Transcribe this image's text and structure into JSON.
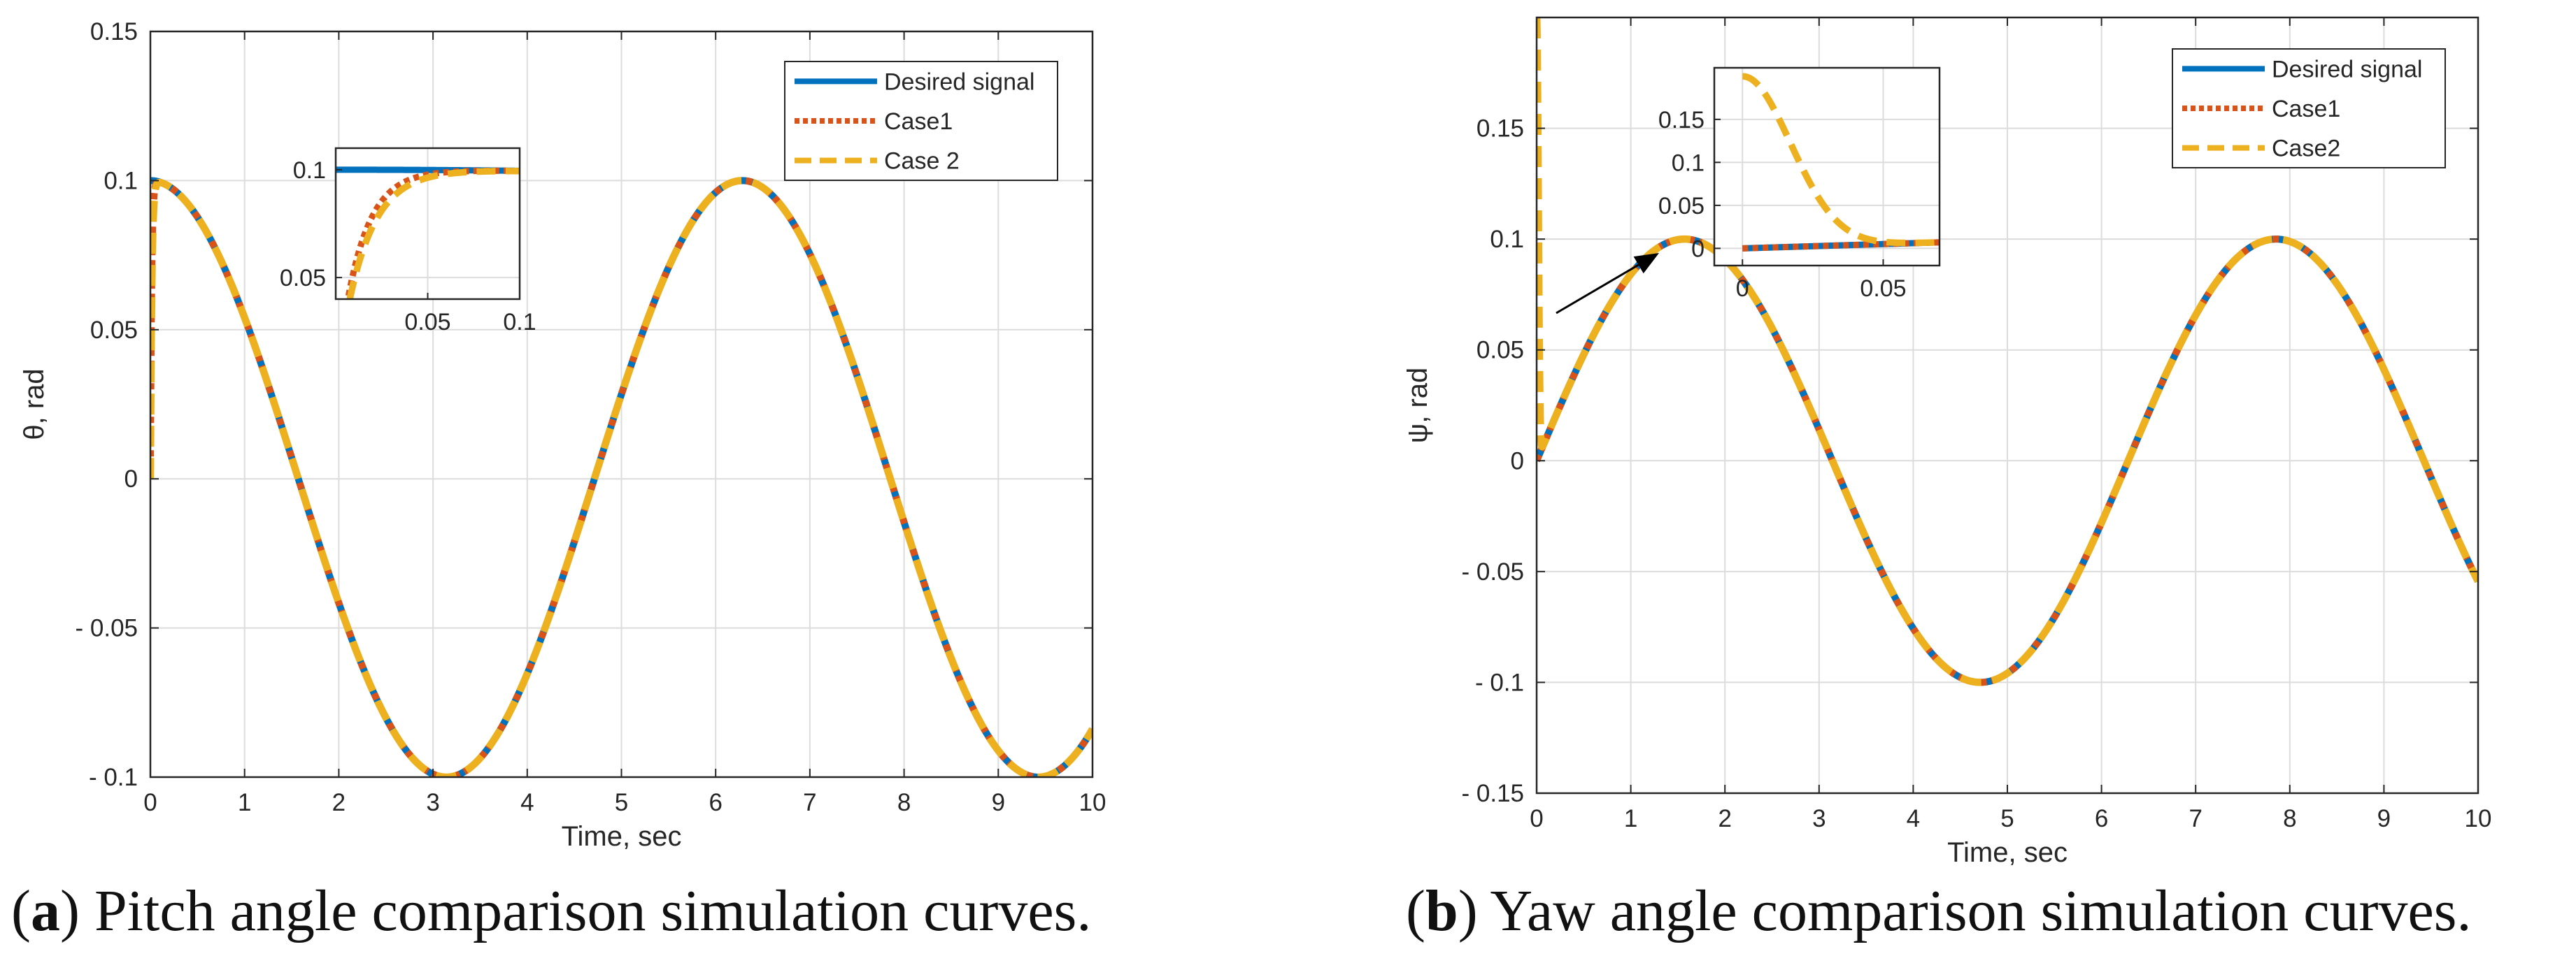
{
  "colors": {
    "desired": "#0072BD",
    "case1": "#D95319",
    "case2": "#EDB120"
  },
  "captions": {
    "a": {
      "open": "(",
      "letter": "a",
      "text": ") Pitch angle comparison simulation curves."
    },
    "b": {
      "open": "(",
      "letter": "b",
      "text": ") Yaw angle comparison simulation curves."
    }
  },
  "chart_data": [
    {
      "id": "pitch",
      "type": "line",
      "xlabel": "Time, sec",
      "ylabel": "θ, rad",
      "xlim": [
        0,
        10
      ],
      "ylim": [
        -0.1,
        0.15
      ],
      "xticks": [
        0,
        1,
        2,
        3,
        4,
        5,
        6,
        7,
        8,
        9,
        10
      ],
      "xtick_labels": [
        "0",
        "1",
        "2",
        "3",
        "4",
        "5",
        "6",
        "7",
        "8",
        "9",
        "10"
      ],
      "yticks": [
        -0.1,
        -0.05,
        0,
        0.05,
        0.1,
        0.15
      ],
      "ytick_labels": [
        "- 0.1",
        "- 0.05",
        "0",
        "0.05",
        "0.1",
        "0.15"
      ],
      "grid": true,
      "legend": {
        "position": "top-right",
        "entries": [
          "Desired signal",
          "Case1",
          "Case 2"
        ]
      },
      "series": [
        {
          "name": "Desired signal",
          "function": "0.1*cos(t)",
          "style": "solid"
        },
        {
          "name": "Case1",
          "function": "0.1*cos(t) with initial rise from 0 at t=0",
          "style": "dotted"
        },
        {
          "name": "Case 2",
          "function": "0.1*cos(t) with initial rise from 0 at t=0",
          "style": "dashed"
        }
      ],
      "inset": {
        "xlim": [
          0,
          0.1
        ],
        "ylim": [
          0.04,
          0.11
        ],
        "xticks": [
          0.05,
          0.1
        ],
        "xtick_labels": [
          "0.05",
          "0.1"
        ],
        "yticks": [
          0.05,
          0.1
        ],
        "ytick_labels": [
          "0.05",
          "0.1"
        ]
      }
    },
    {
      "id": "yaw",
      "type": "line",
      "xlabel": "Time, sec",
      "ylabel": "ψ, rad",
      "xlim": [
        0,
        10
      ],
      "ylim": [
        -0.15,
        0.2
      ],
      "xticks": [
        0,
        1,
        2,
        3,
        4,
        5,
        6,
        7,
        8,
        9,
        10
      ],
      "xtick_labels": [
        "0",
        "1",
        "2",
        "3",
        "4",
        "5",
        "6",
        "7",
        "8",
        "9",
        "10"
      ],
      "yticks": [
        -0.15,
        -0.1,
        -0.05,
        0,
        0.05,
        0.1,
        0.15
      ],
      "ytick_labels": [
        "- 0.15",
        "- 0.1",
        "- 0.05",
        "0",
        "0.05",
        "0.1",
        "0.15"
      ],
      "grid": true,
      "legend": {
        "position": "top-right",
        "entries": [
          "Desired signal",
          "Case1",
          "Case2"
        ]
      },
      "series": [
        {
          "name": "Desired signal",
          "function": "0.1*sin(t)",
          "style": "solid"
        },
        {
          "name": "Case1",
          "function": "0.1*sin(t)",
          "style": "dotted"
        },
        {
          "name": "Case2",
          "function": "0.1*sin(t) with initial spike to 0.2 at t=0",
          "style": "dashed"
        }
      ],
      "inset": {
        "xlim": [
          -0.01,
          0.07
        ],
        "ylim": [
          -0.02,
          0.21
        ],
        "xticks": [
          0,
          0.05
        ],
        "xtick_labels": [
          "0",
          "0.05"
        ],
        "yticks": [
          0,
          0.05,
          0.1,
          0.15
        ],
        "ytick_labels": [
          "0",
          "0.05",
          "0.1",
          "0.15"
        ]
      }
    }
  ]
}
